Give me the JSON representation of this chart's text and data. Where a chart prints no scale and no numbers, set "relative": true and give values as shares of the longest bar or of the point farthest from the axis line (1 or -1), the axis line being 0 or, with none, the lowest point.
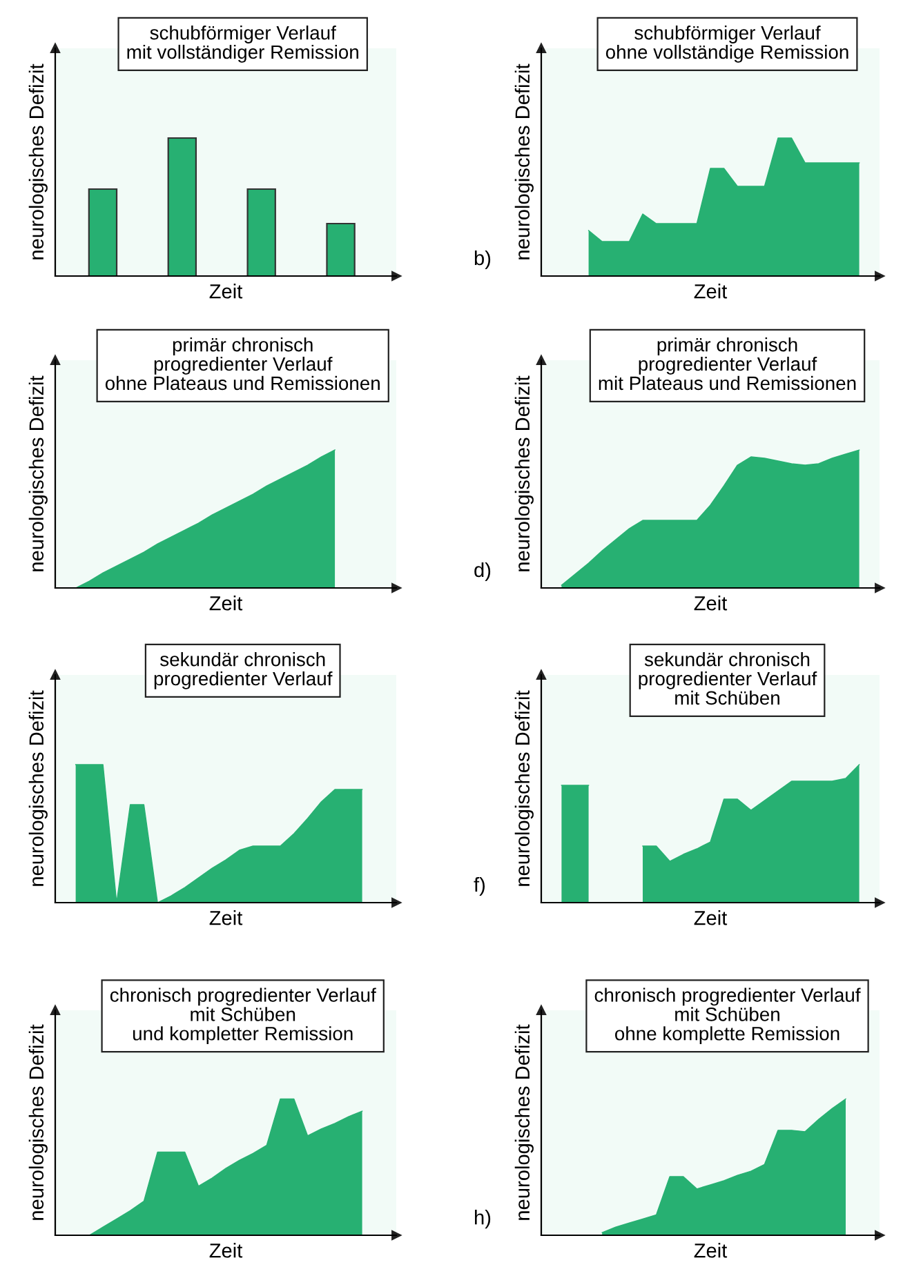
{
  "chart_data": [
    {
      "type": "bar",
      "relative": true,
      "title": "schubförmiger Verlauf\nmit vollständiger Remission",
      "xlabel": "Zeit",
      "ylabel": "neurologisches Defizit",
      "categories": [
        null,
        null,
        null,
        null
      ],
      "values": [
        0.63,
        1,
        0.63,
        0.38
      ],
      "color": "#27b072",
      "tick_labels": false
    },
    {
      "type": "area",
      "relative": true,
      "title": "schubförmiger Verlauf\nohne vollständige Remission",
      "xlabel": "Zeit",
      "ylabel": "neurologisches Defizit",
      "annotations": [
        "b)"
      ],
      "color": "#27b072",
      "tick_labels": false,
      "categories": [
        null,
        null,
        null,
        null,
        null,
        null,
        null,
        null,
        null,
        null,
        null,
        null,
        null,
        null,
        null,
        null,
        null,
        null,
        null,
        null,
        null,
        null,
        null,
        null,
        null
      ],
      "values": [
        null,
        null,
        null,
        0.33,
        0.25,
        0.25,
        0.25,
        0.45,
        0.38,
        0.38,
        0.38,
        0.38,
        0.78,
        0.78,
        0.65,
        0.65,
        0.65,
        1,
        1,
        0.82,
        0.82,
        0.82,
        0.82,
        0.82,
        null
      ]
    },
    {
      "type": "area",
      "relative": true,
      "title": "primär chronisch\nprogredienter Verlauf\nohne Plateaus und Remissionen",
      "xlabel": "Zeit",
      "ylabel": "neurologisches Defizit",
      "color": "#27b072",
      "tick_labels": false,
      "categories": [
        null,
        null,
        null,
        null,
        null,
        null,
        null,
        null,
        null,
        null,
        null,
        null,
        null,
        null,
        null,
        null,
        null,
        null,
        null,
        null,
        null,
        null,
        null,
        null,
        null
      ],
      "values": [
        null,
        0,
        0.05,
        0.11,
        0.16,
        0.21,
        0.26,
        0.32,
        0.37,
        0.42,
        0.47,
        0.53,
        0.58,
        0.63,
        0.68,
        0.74,
        0.79,
        0.84,
        0.89,
        0.95,
        1,
        null,
        null,
        null,
        null
      ]
    },
    {
      "type": "area",
      "relative": true,
      "title": "primär chronisch\nprogredienter Verlauf\nmit Plateaus und Remissionen",
      "xlabel": "Zeit",
      "ylabel": "neurologisches Defizit",
      "annotations": [
        "d)"
      ],
      "color": "#27b072",
      "tick_labels": false,
      "categories": [
        null,
        null,
        null,
        null,
        null,
        null,
        null,
        null,
        null,
        null,
        null,
        null,
        null,
        null,
        null,
        null,
        null,
        null,
        null,
        null,
        null,
        null,
        null,
        null,
        null
      ],
      "values": [
        null,
        0.02,
        0.1,
        0.18,
        0.27,
        0.35,
        0.43,
        0.49,
        0.49,
        0.49,
        0.49,
        0.49,
        0.6,
        0.74,
        0.89,
        0.95,
        0.94,
        0.92,
        0.9,
        0.89,
        0.9,
        0.94,
        0.97,
        1,
        null
      ]
    },
    {
      "type": "area",
      "relative": true,
      "title": "sekundär chronisch\nprogredienter Verlauf",
      "xlabel": "Zeit",
      "ylabel": "neurologisches Defizit",
      "color": "#27b072",
      "tick_labels": false,
      "categories": [
        null,
        null,
        null,
        null,
        null,
        null,
        null,
        null,
        null,
        null,
        null,
        null,
        null,
        null,
        null,
        null,
        null,
        null,
        null,
        null,
        null,
        null,
        null,
        null,
        null
      ],
      "values": [
        null,
        1,
        1,
        1,
        0,
        0.71,
        0.71,
        0,
        0.05,
        0.11,
        0.18,
        0.25,
        0.31,
        0.38,
        0.41,
        0.41,
        0.41,
        0.5,
        0.61,
        0.73,
        0.82,
        0.82,
        0.82,
        null,
        null
      ]
    },
    {
      "type": "area",
      "relative": true,
      "title": "sekundär chronisch\nprogredienter Verlauf\nmit Schüben",
      "xlabel": "Zeit",
      "ylabel": "neurologisches Defizit",
      "annotations": [
        "f)"
      ],
      "color": "#27b072",
      "tick_labels": false,
      "categories": [
        null,
        null,
        null,
        null,
        null,
        null,
        null,
        null,
        null,
        null,
        null,
        null,
        null,
        null,
        null,
        null,
        null,
        null,
        null,
        null,
        null,
        null,
        null,
        null,
        null
      ],
      "values": [
        null,
        0.85,
        0.85,
        0.85,
        null,
        null,
        null,
        0.41,
        0.41,
        0.3,
        0.35,
        0.39,
        0.44,
        0.75,
        0.75,
        0.67,
        0.74,
        0.81,
        0.88,
        0.88,
        0.88,
        0.88,
        0.9,
        1,
        null
      ]
    },
    {
      "type": "area",
      "relative": true,
      "title": "chronisch progredienter Verlauf\nmit Schüben\nund kompletter Remission",
      "xlabel": "Zeit",
      "ylabel": "neurologisches Defizit",
      "color": "#27b072",
      "tick_labels": false,
      "categories": [
        null,
        null,
        null,
        null,
        null,
        null,
        null,
        null,
        null,
        null,
        null,
        null,
        null,
        null,
        null,
        null,
        null,
        null,
        null,
        null,
        null,
        null,
        null,
        null,
        null
      ],
      "values": [
        null,
        null,
        0,
        0.06,
        0.12,
        0.18,
        0.25,
        0.61,
        0.61,
        0.61,
        0.36,
        0.42,
        0.49,
        0.55,
        0.6,
        0.66,
        1,
        1,
        0.73,
        0.78,
        0.82,
        0.87,
        0.91,
        null,
        null
      ]
    },
    {
      "type": "area",
      "relative": true,
      "title": "chronisch progredienter Verlauf\nmit Schüben\nohne komplette Remission",
      "xlabel": "Zeit",
      "ylabel": "neurologisches Defizit",
      "annotations": [
        "h)"
      ],
      "color": "#27b072",
      "tick_labels": false,
      "categories": [
        null,
        null,
        null,
        null,
        null,
        null,
        null,
        null,
        null,
        null,
        null,
        null,
        null,
        null,
        null,
        null,
        null,
        null,
        null,
        null,
        null,
        null,
        null,
        null,
        null
      ],
      "values": [
        null,
        null,
        null,
        null,
        0.02,
        0.06,
        0.09,
        0.12,
        0.15,
        0.43,
        0.43,
        0.34,
        0.37,
        0.4,
        0.44,
        0.47,
        0.52,
        0.77,
        0.77,
        0.76,
        0.85,
        0.93,
        1,
        null,
        null
      ]
    }
  ]
}
